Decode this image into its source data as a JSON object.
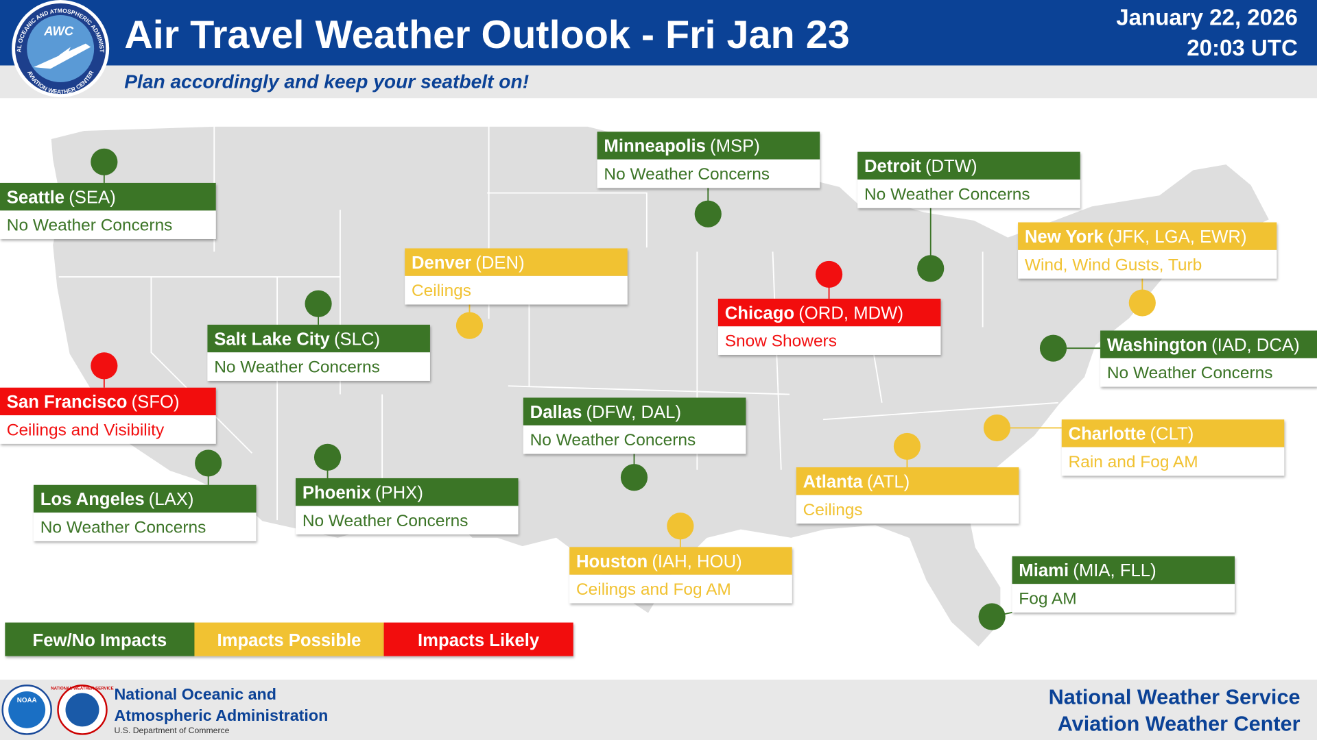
{
  "header": {
    "title": "Air Travel Weather Outlook - Fri Jan 23",
    "subtitle": "Plan accordingly and keep your seatbelt on!",
    "date": "January 22, 2026",
    "time": "20:03 UTC",
    "logo": {
      "abbr": "AWC",
      "ring_top": "NATIONAL OCEANIC AND ATMOSPHERIC ADMINISTRATION",
      "ring_bottom": "AVIATION WEATHER CENTER"
    }
  },
  "airports": [
    {
      "name": "Seattle",
      "code": "(SEA)",
      "status": "No Weather Concerns",
      "color": "#3b7426"
    },
    {
      "name": "San Francisco",
      "code": "(SFO)",
      "status": "Ceilings and Visibility",
      "color": "#f20f10"
    },
    {
      "name": "Los Angeles",
      "code": "(LAX)",
      "status": "No Weather Concerns",
      "color": "#3b7426"
    },
    {
      "name": "Salt Lake City",
      "code": "(SLC)",
      "status": "No Weather Concerns",
      "color": "#3b7426"
    },
    {
      "name": "Phoenix",
      "code": "(PHX)",
      "status": "No Weather Concerns",
      "color": "#3b7426"
    },
    {
      "name": "Denver",
      "code": "(DEN)",
      "status": "Ceilings",
      "color": "#f1c232"
    },
    {
      "name": "Minneapolis",
      "code": "(MSP)",
      "status": "No Weather Concerns",
      "color": "#3b7426"
    },
    {
      "name": "Dallas",
      "code": "(DFW, DAL)",
      "status": "No Weather Concerns",
      "color": "#3b7426"
    },
    {
      "name": "Houston",
      "code": "(IAH, HOU)",
      "status": "Ceilings and Fog AM",
      "color": "#f1c232"
    },
    {
      "name": "Chicago",
      "code": "(ORD, MDW)",
      "status": "Snow Showers",
      "color": "#f20f10"
    },
    {
      "name": "Detroit",
      "code": "(DTW)",
      "status": "No Weather Concerns",
      "color": "#3b7426"
    },
    {
      "name": "Atlanta",
      "code": "(ATL)",
      "status": "Ceilings",
      "color": "#f1c232"
    },
    {
      "name": "New York",
      "code": "(JFK, LGA, EWR)",
      "status": "Wind, Wind Gusts, Turb",
      "color": "#f1c232"
    },
    {
      "name": "Washington",
      "code": "(IAD, DCA)",
      "status": "No Weather Concerns",
      "color": "#3b7426"
    },
    {
      "name": "Charlotte",
      "code": "(CLT)",
      "status": "Rain and Fog AM",
      "color": "#f1c232"
    },
    {
      "name": "Miami",
      "code": "(MIA, FLL)",
      "status": "Fog AM",
      "color": "#3b7426"
    }
  ],
  "legend": [
    {
      "label": "Few/No Impacts",
      "color": "#3b7426"
    },
    {
      "label": "Impacts Possible",
      "color": "#f1c232"
    },
    {
      "label": "Impacts Likely",
      "color": "#f20f10"
    }
  ],
  "footer": {
    "noaa_logo": "NOAA",
    "nws_logo": "NATIONAL WEATHER SERVICE",
    "noaa_line1": "National Oceanic and",
    "noaa_line2": "Atmospheric Administration",
    "noaa_line3": "U.S. Department of Commerce",
    "nws_line1": "National Weather Service",
    "nws_line2": "Aviation Weather Center"
  }
}
